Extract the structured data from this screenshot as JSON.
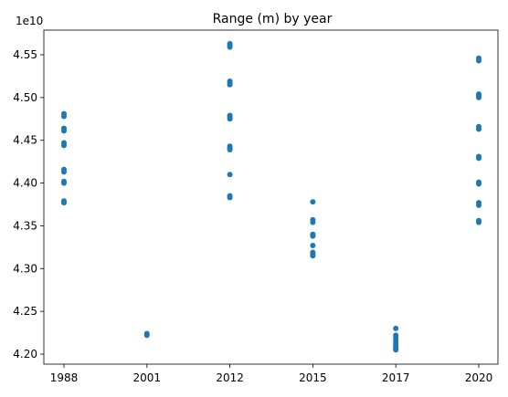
{
  "chart_data": {
    "type": "scatter",
    "title": "Range (m) by year",
    "xlabel": "",
    "ylabel": "",
    "x_categories": [
      "1988",
      "2001",
      "2012",
      "2015",
      "2017",
      "2020"
    ],
    "y_offset_label": "1e10",
    "y_ticks": [
      4.2,
      4.25,
      4.3,
      4.35,
      4.4,
      4.45,
      4.5,
      4.55
    ],
    "y_tick_labels": [
      "4.20",
      "4.25",
      "4.30",
      "4.35",
      "4.40",
      "4.45",
      "4.50",
      "4.55"
    ],
    "ylim": [
      4.19,
      4.57
    ],
    "grid": false,
    "series": [
      {
        "color": "#1f77b4",
        "points": [
          {
            "x": "1988",
            "y": 4.481
          },
          {
            "x": "1988",
            "y": 4.478
          },
          {
            "x": "1988",
            "y": 4.464
          },
          {
            "x": "1988",
            "y": 4.461
          },
          {
            "x": "1988",
            "y": 4.447
          },
          {
            "x": "1988",
            "y": 4.444
          },
          {
            "x": "1988",
            "y": 4.416
          },
          {
            "x": "1988",
            "y": 4.413
          },
          {
            "x": "1988",
            "y": 4.402
          },
          {
            "x": "1988",
            "y": 4.4
          },
          {
            "x": "1988",
            "y": 4.379
          },
          {
            "x": "1988",
            "y": 4.377
          },
          {
            "x": "2001",
            "y": 4.224
          },
          {
            "x": "2001",
            "y": 4.222
          },
          {
            "x": "2012",
            "y": 4.563
          },
          {
            "x": "2012",
            "y": 4.561
          },
          {
            "x": "2012",
            "y": 4.559
          },
          {
            "x": "2012",
            "y": 4.519
          },
          {
            "x": "2012",
            "y": 4.517
          },
          {
            "x": "2012",
            "y": 4.515
          },
          {
            "x": "2012",
            "y": 4.479
          },
          {
            "x": "2012",
            "y": 4.477
          },
          {
            "x": "2012",
            "y": 4.475
          },
          {
            "x": "2012",
            "y": 4.443
          },
          {
            "x": "2012",
            "y": 4.441
          },
          {
            "x": "2012",
            "y": 4.439
          },
          {
            "x": "2012",
            "y": 4.41
          },
          {
            "x": "2012",
            "y": 4.385
          },
          {
            "x": "2012",
            "y": 4.383
          },
          {
            "x": "2015",
            "y": 4.378
          },
          {
            "x": "2015",
            "y": 4.357
          },
          {
            "x": "2015",
            "y": 4.354
          },
          {
            "x": "2015",
            "y": 4.34
          },
          {
            "x": "2015",
            "y": 4.338
          },
          {
            "x": "2015",
            "y": 4.327
          },
          {
            "x": "2015",
            "y": 4.319
          },
          {
            "x": "2015",
            "y": 4.317
          },
          {
            "x": "2015",
            "y": 4.315
          },
          {
            "x": "2017",
            "y": 4.23
          },
          {
            "x": "2017",
            "y": 4.222
          },
          {
            "x": "2017",
            "y": 4.219
          },
          {
            "x": "2017",
            "y": 4.216
          },
          {
            "x": "2017",
            "y": 4.213
          },
          {
            "x": "2017",
            "y": 4.21
          },
          {
            "x": "2017",
            "y": 4.208
          },
          {
            "x": "2017",
            "y": 4.206
          },
          {
            "x": "2017",
            "y": 4.205
          },
          {
            "x": "2020",
            "y": 4.546
          },
          {
            "x": "2020",
            "y": 4.543
          },
          {
            "x": "2020",
            "y": 4.504
          },
          {
            "x": "2020",
            "y": 4.502
          },
          {
            "x": "2020",
            "y": 4.5
          },
          {
            "x": "2020",
            "y": 4.466
          },
          {
            "x": "2020",
            "y": 4.463
          },
          {
            "x": "2020",
            "y": 4.431
          },
          {
            "x": "2020",
            "y": 4.429
          },
          {
            "x": "2020",
            "y": 4.401
          },
          {
            "x": "2020",
            "y": 4.399
          },
          {
            "x": "2020",
            "y": 4.377
          },
          {
            "x": "2020",
            "y": 4.374
          },
          {
            "x": "2020",
            "y": 4.356
          },
          {
            "x": "2020",
            "y": 4.354
          }
        ]
      }
    ]
  }
}
